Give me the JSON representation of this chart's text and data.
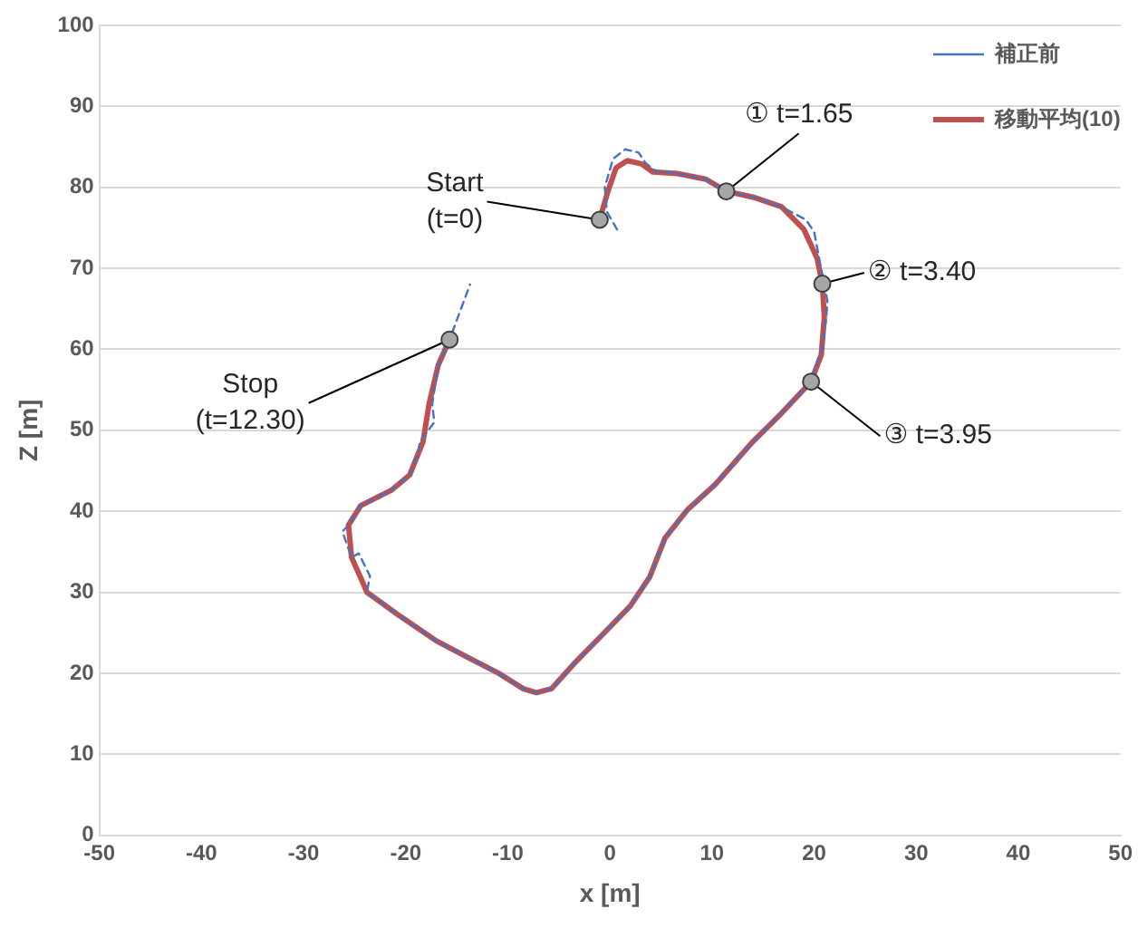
{
  "chart_data": {
    "type": "line",
    "xlabel": "x [m]",
    "ylabel": "Z [m]",
    "xlim": [
      -50,
      50
    ],
    "xticks": [
      -50,
      -40,
      -30,
      -20,
      -10,
      0,
      10,
      20,
      30,
      40,
      50
    ],
    "ylim": [
      0,
      100
    ],
    "yticks": [
      0,
      10,
      20,
      30,
      40,
      50,
      60,
      70,
      80,
      90,
      100
    ],
    "grid": "y",
    "legend": "top right",
    "marker": "none",
    "series": [
      {
        "name": "補正前",
        "color": "#4472c4",
        "line_style": "dashed",
        "x": [
          0.7,
          -0.3,
          -0.5,
          0.3,
          1.5,
          2.8,
          3.5,
          4.5,
          6.6,
          9.4,
          11.4,
          14,
          16.8,
          19.2,
          20,
          20.5,
          21.3,
          21.2,
          20.8,
          20.5,
          19.7,
          16.8,
          14,
          10.3,
          7.6,
          5.4,
          3.9,
          2,
          -0.7,
          -3.5,
          -5.7,
          -7.2,
          -8.5,
          -10.9,
          -14.6,
          -17,
          -20.5,
          -23.8,
          -23.5,
          -24.6,
          -25.3,
          -26.2,
          -25.6,
          -24.4,
          -21.4,
          -19.6,
          -18.8,
          -18.6,
          -17.2,
          -17.4,
          -16.8,
          -15.7,
          -13.7
        ],
        "values": [
          74.8,
          77,
          80,
          83.5,
          84.7,
          84.3,
          83,
          82,
          81.7,
          81,
          79.5,
          78.8,
          77.6,
          76,
          74.5,
          71.2,
          66,
          64,
          60,
          59.3,
          56,
          52.1,
          48.6,
          43.3,
          40.2,
          36.7,
          31.9,
          28.3,
          24.8,
          21.2,
          18.1,
          17.6,
          18.1,
          20,
          22.4,
          24,
          27,
          30,
          32,
          34.8,
          34.3,
          37.5,
          38.3,
          40.7,
          42.6,
          44.5,
          47,
          48.6,
          51,
          53.3,
          58.1,
          61.2,
          68
        ]
      },
      {
        "name": "移動平均(10)",
        "color": "#c0504d",
        "line_style": "solid",
        "x": [
          -1,
          -0.2,
          0.6,
          1.7,
          3.1,
          4.2,
          6.6,
          9.4,
          11.4,
          14,
          16.8,
          19,
          20.3,
          20.8,
          21,
          20.7,
          19.7,
          16.8,
          14,
          10.3,
          7.6,
          5.4,
          3.9,
          2,
          -0.7,
          -3.5,
          -5.7,
          -7.2,
          -8.5,
          -10.9,
          -14.6,
          -17,
          -20.5,
          -23.8,
          -24.2,
          -25.3,
          -25.6,
          -24.4,
          -21.4,
          -19.6,
          -18.3,
          -17.7,
          -16.8,
          -15.7
        ],
        "values": [
          76,
          79.5,
          82.4,
          83.3,
          82.9,
          81.9,
          81.7,
          81,
          79.5,
          78.8,
          77.6,
          74.8,
          71.2,
          68.1,
          64,
          59.3,
          56,
          52.1,
          48.6,
          43.3,
          40.2,
          36.7,
          31.9,
          28.3,
          24.8,
          21.2,
          18.1,
          17.6,
          18.1,
          20,
          22.4,
          24,
          27,
          30,
          31.2,
          34.3,
          38.3,
          40.7,
          42.6,
          44.5,
          48.6,
          53.3,
          58.1,
          61.2
        ]
      }
    ],
    "annotations": [
      {
        "text": "Start\n(t=0)",
        "x": -1,
        "y": 76
      },
      {
        "text": "① t=1.65",
        "x": 11.4,
        "y": 79.5
      },
      {
        "text": "② t=3.40",
        "x": 20.8,
        "y": 68.1
      },
      {
        "text": "③ t=3.95",
        "x": 19.7,
        "y": 56
      },
      {
        "text": "Stop\n(t=12.30)",
        "x": -15.7,
        "y": 61.2
      }
    ]
  }
}
